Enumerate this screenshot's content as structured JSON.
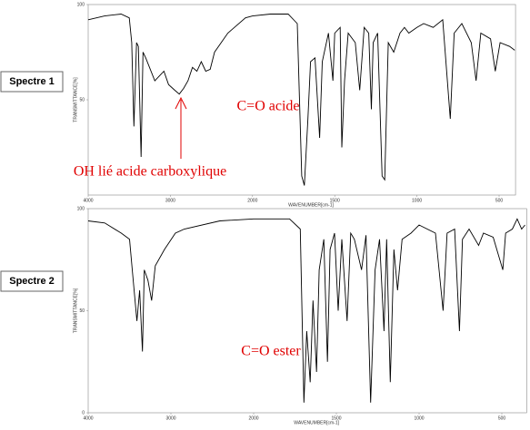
{
  "chart_data": [
    {
      "type": "line",
      "title": "Spectre 1",
      "ylabel": "TRANSMITTANCE[%]",
      "xlabel": "WAVENUMBER[cm-1]",
      "color": "#000000",
      "xlim": [
        4000,
        400
      ],
      "ylim": [
        0,
        100
      ],
      "xticks": [
        4000,
        3000,
        2000,
        1500,
        1000,
        500
      ],
      "yticks": [
        100,
        50
      ],
      "annotations": [
        {
          "text": "C=O acide"
        },
        {
          "text": "OH lié acide carboxylique"
        }
      ],
      "x": [
        4000,
        3800,
        3600,
        3500,
        3470,
        3444,
        3411,
        3389,
        3356,
        3333,
        3300,
        3189,
        3078,
        3022,
        2946,
        2892,
        2839,
        2785,
        2731,
        2677,
        2624,
        2570,
        2516,
        2462,
        2301,
        2086,
        2000,
        1891,
        1783,
        1728,
        1701,
        1685,
        1663,
        1647,
        1620,
        1592,
        1576,
        1538,
        1511,
        1500,
        1467,
        1457,
        1440,
        1418,
        1375,
        1348,
        1321,
        1293,
        1277,
        1266,
        1239,
        1212,
        1196,
        1174,
        1141,
        1103,
        1076,
        1049,
        1000,
        959,
        901,
        843,
        797,
        773,
        727,
        669,
        640,
        611,
        552,
        523,
        494,
        436,
        405
      ],
      "values": [
        92,
        94,
        95,
        93,
        80,
        36,
        80,
        78,
        20,
        75,
        72,
        60,
        65,
        58,
        55,
        53,
        56,
        60,
        67,
        65,
        70,
        65,
        66,
        75,
        85,
        93,
        94,
        95,
        95,
        90,
        10,
        5,
        40,
        70,
        72,
        30,
        70,
        85,
        60,
        85,
        88,
        25,
        60,
        85,
        80,
        55,
        88,
        85,
        45,
        80,
        85,
        10,
        8,
        80,
        75,
        85,
        88,
        85,
        88,
        90,
        88,
        92,
        40,
        85,
        90,
        80,
        60,
        85,
        82,
        65,
        80,
        78,
        76
      ]
    },
    {
      "type": "line",
      "title": "Spectre 2",
      "ylabel": "TRANSMITTANCE[%]",
      "xlabel": "WAVENUMBER[cm-1]",
      "color": "#000000",
      "xlim": [
        4000,
        350
      ],
      "ylim": [
        0,
        100
      ],
      "xticks": [
        4000,
        3000,
        2000,
        1500,
        1000,
        500
      ],
      "yticks": [
        100,
        50,
        0
      ],
      "annotations": [
        {
          "text": "C=O ester"
        }
      ],
      "x": [
        4000,
        3800,
        3600,
        3500,
        3467,
        3411,
        3378,
        3344,
        3322,
        3278,
        3233,
        3189,
        3078,
        2946,
        2839,
        2409,
        2000,
        1783,
        1718,
        1696,
        1679,
        1658,
        1641,
        1620,
        1604,
        1576,
        1554,
        1538,
        1511,
        1489,
        1467,
        1435,
        1413,
        1391,
        1348,
        1321,
        1293,
        1266,
        1239,
        1212,
        1196,
        1174,
        1152,
        1130,
        1103,
        1049,
        1000,
        901,
        855,
        831,
        785,
        756,
        738,
        698,
        640,
        611,
        552,
        494,
        477,
        436,
        407,
        380,
        360
      ],
      "values": [
        94,
        93,
        88,
        85,
        70,
        45,
        60,
        30,
        70,
        65,
        55,
        72,
        80,
        88,
        90,
        94,
        95,
        95,
        90,
        5,
        40,
        15,
        55,
        20,
        70,
        85,
        25,
        80,
        88,
        50,
        85,
        45,
        88,
        85,
        70,
        87,
        5,
        70,
        85,
        40,
        85,
        15,
        80,
        60,
        85,
        88,
        92,
        88,
        50,
        88,
        90,
        40,
        85,
        90,
        82,
        88,
        86,
        70,
        88,
        90,
        95,
        90,
        92
      ]
    }
  ]
}
